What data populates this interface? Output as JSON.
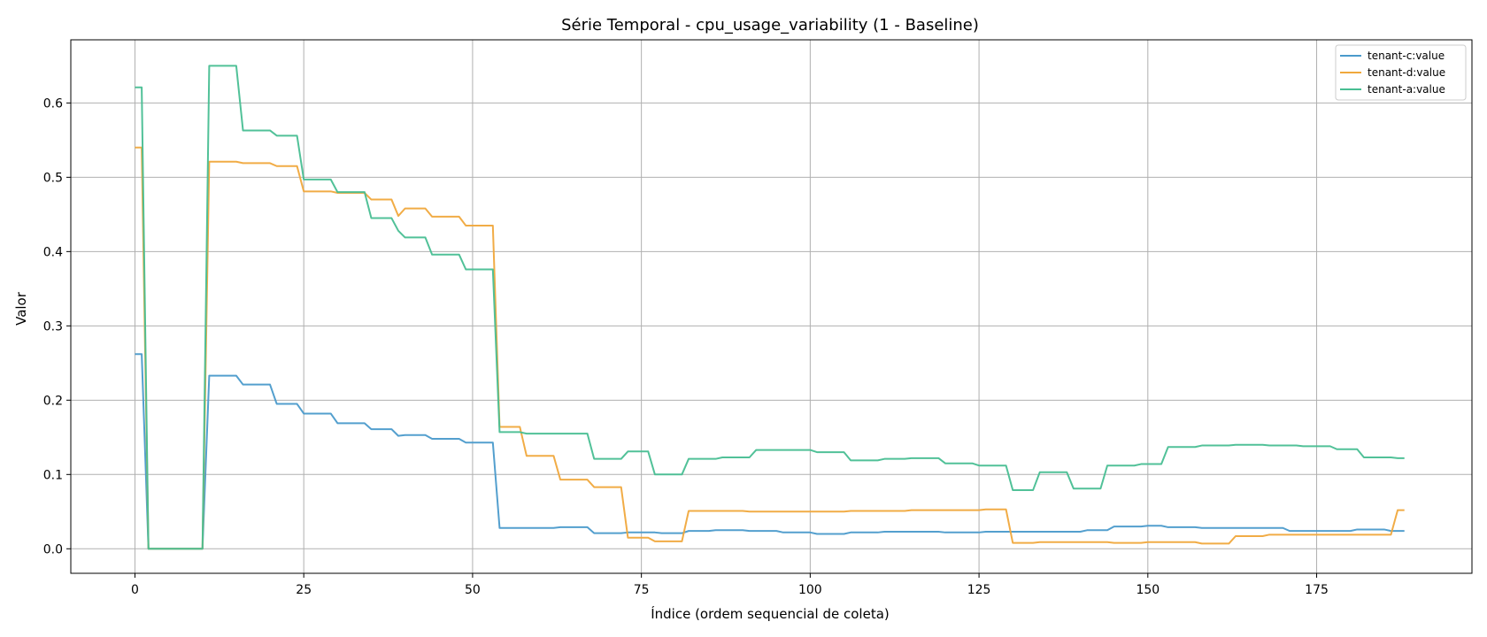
{
  "chart_data": {
    "type": "line",
    "title": "Série Temporal - cpu_usage_variability (1 - Baseline)",
    "xlabel": "Índice (ordem sequencial de coleta)",
    "ylabel": "Valor",
    "xlim": [
      -9.5,
      198
    ],
    "ylim": [
      -0.033,
      0.685
    ],
    "xticks": [
      0,
      25,
      50,
      75,
      100,
      125,
      150,
      175
    ],
    "yticks": [
      0.0,
      0.1,
      0.2,
      0.3,
      0.4,
      0.5,
      0.6
    ],
    "ytick_labels": [
      "0.0",
      "0.1",
      "0.2",
      "0.3",
      "0.4",
      "0.5",
      "0.6"
    ],
    "grid": true,
    "legend_position": "top-right",
    "series": [
      {
        "name": "tenant-c:value",
        "color": "#4a9acb",
        "points": [
          [
            0,
            0.262
          ],
          [
            1,
            0.262
          ],
          [
            2,
            0
          ],
          [
            10,
            0
          ],
          [
            11,
            0.233
          ],
          [
            15,
            0.233
          ],
          [
            16,
            0.221
          ],
          [
            20,
            0.221
          ],
          [
            21,
            0.195
          ],
          [
            24,
            0.195
          ],
          [
            25,
            0.182
          ],
          [
            29,
            0.182
          ],
          [
            30,
            0.169
          ],
          [
            34,
            0.169
          ],
          [
            35,
            0.161
          ],
          [
            38,
            0.161
          ],
          [
            39,
            0.152
          ],
          [
            40,
            0.153
          ],
          [
            43,
            0.153
          ],
          [
            44,
            0.148
          ],
          [
            48,
            0.148
          ],
          [
            49,
            0.143
          ],
          [
            53,
            0.143
          ],
          [
            54,
            0.028
          ],
          [
            62,
            0.028
          ],
          [
            63,
            0.029
          ],
          [
            67,
            0.029
          ],
          [
            68,
            0.021
          ],
          [
            72,
            0.021
          ],
          [
            73,
            0.022
          ],
          [
            77,
            0.022
          ],
          [
            78,
            0.021
          ],
          [
            81,
            0.021
          ],
          [
            82,
            0.024
          ],
          [
            85,
            0.024
          ],
          [
            86,
            0.025
          ],
          [
            90,
            0.025
          ],
          [
            91,
            0.024
          ],
          [
            95,
            0.024
          ],
          [
            96,
            0.022
          ],
          [
            100,
            0.022
          ],
          [
            101,
            0.02
          ],
          [
            105,
            0.02
          ],
          [
            106,
            0.022
          ],
          [
            110,
            0.022
          ],
          [
            111,
            0.023
          ],
          [
            119,
            0.023
          ],
          [
            120,
            0.022
          ],
          [
            125,
            0.022
          ],
          [
            126,
            0.023
          ],
          [
            132,
            0.023
          ],
          [
            133,
            0.023
          ],
          [
            140,
            0.023
          ],
          [
            141,
            0.025
          ],
          [
            144,
            0.025
          ],
          [
            145,
            0.03
          ],
          [
            149,
            0.03
          ],
          [
            150,
            0.031
          ],
          [
            152,
            0.031
          ],
          [
            153,
            0.029
          ],
          [
            157,
            0.029
          ],
          [
            158,
            0.028
          ],
          [
            170,
            0.028
          ],
          [
            171,
            0.024
          ],
          [
            180,
            0.024
          ],
          [
            181,
            0.026
          ],
          [
            185,
            0.026
          ],
          [
            186,
            0.024
          ],
          [
            188,
            0.024
          ]
        ]
      },
      {
        "name": "tenant-d:value",
        "color": "#f0a83c",
        "points": [
          [
            0,
            0.54
          ],
          [
            1,
            0.54
          ],
          [
            2,
            0
          ],
          [
            10,
            0
          ],
          [
            11,
            0.521
          ],
          [
            15,
            0.521
          ],
          [
            16,
            0.519
          ],
          [
            20,
            0.519
          ],
          [
            21,
            0.515
          ],
          [
            24,
            0.515
          ],
          [
            25,
            0.481
          ],
          [
            29,
            0.481
          ],
          [
            30,
            0.479
          ],
          [
            34,
            0.479
          ],
          [
            35,
            0.47
          ],
          [
            38,
            0.47
          ],
          [
            39,
            0.448
          ],
          [
            40,
            0.458
          ],
          [
            43,
            0.458
          ],
          [
            44,
            0.447
          ],
          [
            48,
            0.447
          ],
          [
            49,
            0.435
          ],
          [
            53,
            0.435
          ],
          [
            54,
            0.164
          ],
          [
            57,
            0.164
          ],
          [
            58,
            0.125
          ],
          [
            62,
            0.125
          ],
          [
            63,
            0.093
          ],
          [
            67,
            0.093
          ],
          [
            68,
            0.083
          ],
          [
            72,
            0.083
          ],
          [
            73,
            0.015
          ],
          [
            76,
            0.015
          ],
          [
            77,
            0.01
          ],
          [
            81,
            0.01
          ],
          [
            82,
            0.051
          ],
          [
            85,
            0.051
          ],
          [
            86,
            0.051
          ],
          [
            90,
            0.051
          ],
          [
            91,
            0.05
          ],
          [
            105,
            0.05
          ],
          [
            106,
            0.051
          ],
          [
            114,
            0.051
          ],
          [
            115,
            0.052
          ],
          [
            125,
            0.052
          ],
          [
            126,
            0.053
          ],
          [
            129,
            0.053
          ],
          [
            130,
            0.008
          ],
          [
            133,
            0.008
          ],
          [
            134,
            0.009
          ],
          [
            139,
            0.009
          ],
          [
            140,
            0.009
          ],
          [
            144,
            0.009
          ],
          [
            145,
            0.008
          ],
          [
            149,
            0.008
          ],
          [
            150,
            0.009
          ],
          [
            157,
            0.009
          ],
          [
            158,
            0.007
          ],
          [
            162,
            0.007
          ],
          [
            163,
            0.017
          ],
          [
            167,
            0.017
          ],
          [
            168,
            0.019
          ],
          [
            186,
            0.019
          ],
          [
            187,
            0.052
          ],
          [
            188,
            0.052
          ]
        ]
      },
      {
        "name": "tenant-a:value",
        "color": "#48be92",
        "points": [
          [
            0,
            0.621
          ],
          [
            1,
            0.621
          ],
          [
            2,
            0
          ],
          [
            10,
            0
          ],
          [
            11,
            0.65
          ],
          [
            15,
            0.65
          ],
          [
            16,
            0.563
          ],
          [
            20,
            0.563
          ],
          [
            21,
            0.556
          ],
          [
            24,
            0.556
          ],
          [
            25,
            0.497
          ],
          [
            29,
            0.497
          ],
          [
            30,
            0.48
          ],
          [
            34,
            0.48
          ],
          [
            35,
            0.445
          ],
          [
            38,
            0.445
          ],
          [
            39,
            0.428
          ],
          [
            40,
            0.419
          ],
          [
            43,
            0.419
          ],
          [
            44,
            0.396
          ],
          [
            48,
            0.396
          ],
          [
            49,
            0.376
          ],
          [
            53,
            0.376
          ],
          [
            54,
            0.157
          ],
          [
            57,
            0.157
          ],
          [
            58,
            0.155
          ],
          [
            62,
            0.155
          ],
          [
            63,
            0.155
          ],
          [
            67,
            0.155
          ],
          [
            68,
            0.121
          ],
          [
            72,
            0.121
          ],
          [
            73,
            0.131
          ],
          [
            76,
            0.131
          ],
          [
            77,
            0.1
          ],
          [
            81,
            0.1
          ],
          [
            82,
            0.121
          ],
          [
            86,
            0.121
          ],
          [
            87,
            0.123
          ],
          [
            91,
            0.123
          ],
          [
            92,
            0.133
          ],
          [
            100,
            0.133
          ],
          [
            101,
            0.13
          ],
          [
            105,
            0.13
          ],
          [
            106,
            0.119
          ],
          [
            110,
            0.119
          ],
          [
            111,
            0.121
          ],
          [
            114,
            0.121
          ],
          [
            115,
            0.122
          ],
          [
            119,
            0.122
          ],
          [
            120,
            0.115
          ],
          [
            124,
            0.115
          ],
          [
            125,
            0.112
          ],
          [
            129,
            0.112
          ],
          [
            130,
            0.079
          ],
          [
            133,
            0.079
          ],
          [
            134,
            0.103
          ],
          [
            138,
            0.103
          ],
          [
            139,
            0.081
          ],
          [
            143,
            0.081
          ],
          [
            144,
            0.112
          ],
          [
            148,
            0.112
          ],
          [
            149,
            0.114
          ],
          [
            152,
            0.114
          ],
          [
            153,
            0.137
          ],
          [
            157,
            0.137
          ],
          [
            158,
            0.139
          ],
          [
            162,
            0.139
          ],
          [
            163,
            0.14
          ],
          [
            167,
            0.14
          ],
          [
            168,
            0.139
          ],
          [
            172,
            0.139
          ],
          [
            173,
            0.138
          ],
          [
            177,
            0.138
          ],
          [
            178,
            0.134
          ],
          [
            181,
            0.134
          ],
          [
            182,
            0.123
          ],
          [
            186,
            0.123
          ],
          [
            187,
            0.122
          ],
          [
            188,
            0.122
          ]
        ]
      }
    ]
  }
}
